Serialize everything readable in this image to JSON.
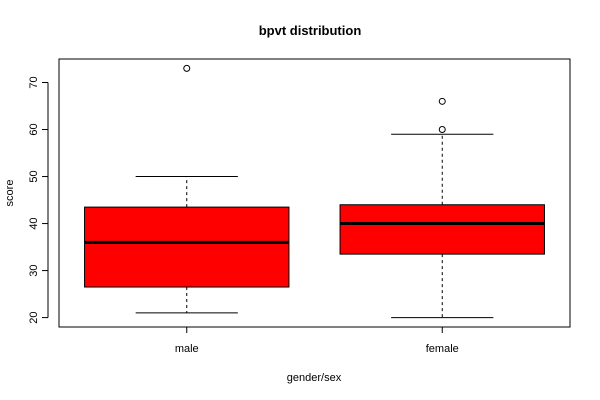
{
  "chart_data": {
    "type": "box",
    "title": "bpvt distribution",
    "xlabel": "gender/sex",
    "ylabel": "score",
    "ylim": [
      18,
      75
    ],
    "yticks": [
      20,
      30,
      40,
      50,
      60,
      70
    ],
    "grid": false,
    "fill_color": "#ff0000",
    "categories": [
      "male",
      "female"
    ],
    "boxes": [
      {
        "category": "male",
        "whisker_low": 21,
        "q1": 26.5,
        "median": 36,
        "q3": 43.5,
        "whisker_high": 50,
        "outliers": [
          73
        ]
      },
      {
        "category": "female",
        "whisker_low": 20,
        "q1": 33.5,
        "median": 40,
        "q3": 44,
        "whisker_high": 59,
        "outliers": [
          60,
          66
        ]
      }
    ]
  }
}
